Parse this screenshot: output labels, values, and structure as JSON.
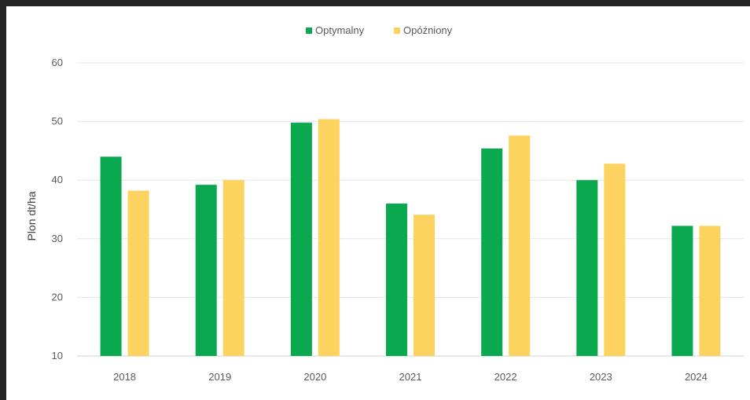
{
  "chart_data": {
    "type": "bar",
    "title": "",
    "xlabel": "",
    "ylabel": "Plon dt/ha",
    "ylim": [
      10,
      60
    ],
    "yticks": [
      10,
      20,
      30,
      40,
      50,
      60
    ],
    "grid": true,
    "legend_position": "top-center",
    "categories": [
      "2018",
      "2019",
      "2020",
      "2021",
      "2022",
      "2023",
      "2024"
    ],
    "series": [
      {
        "name": "Optymalny",
        "color": "#0aa84f",
        "values": [
          44.0,
          39.2,
          49.8,
          36.0,
          45.4,
          40.0,
          32.2
        ]
      },
      {
        "name": "Opóźniony",
        "color": "#fbd35e",
        "values": [
          38.2,
          40.0,
          50.4,
          34.1,
          47.6,
          42.8,
          32.2
        ]
      }
    ]
  }
}
